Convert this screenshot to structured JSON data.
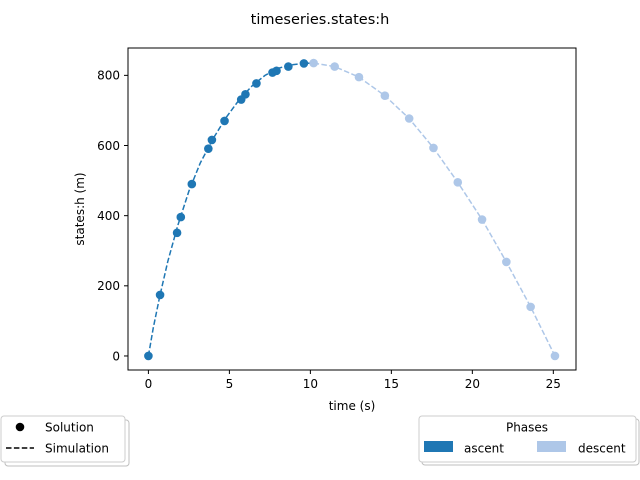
{
  "chart_data": {
    "type": "line",
    "title": "timeseries.states:h",
    "xlabel": "time (s)",
    "ylabel": "states:h (m)",
    "xlim": [
      -1.26,
      26.4
    ],
    "ylim": [
      -40,
      878
    ],
    "xticks": [
      0,
      5,
      10,
      15,
      20,
      25
    ],
    "yticks": [
      0,
      200,
      400,
      600,
      800
    ],
    "grid": false,
    "series": [
      {
        "name": "ascent",
        "color": "#1f77b4",
        "solution": {
          "x": [
            0.0,
            0.72,
            1.77,
            2.0,
            2.68,
            3.7,
            3.92,
            4.7,
            5.73,
            5.99,
            6.67,
            7.66,
            7.91,
            8.64,
            9.6
          ],
          "y": [
            0,
            174,
            351,
            396,
            490,
            591,
            616,
            670,
            731,
            746,
            777,
            808,
            813,
            825,
            834
          ]
        },
        "simulation": {
          "x": [
            0.0,
            0.3,
            0.7,
            1.2,
            1.8,
            2.5,
            3.2,
            4.0,
            4.8,
            5.6,
            6.4,
            7.2,
            8.0,
            8.8,
            9.6,
            10.2
          ],
          "y": [
            0,
            80,
            170,
            270,
            370,
            470,
            550,
            620,
            680,
            730,
            770,
            800,
            820,
            830,
            834,
            835
          ]
        }
      },
      {
        "name": "descent",
        "color": "#aec7e8",
        "solution": {
          "x": [
            10.2,
            11.5,
            13.0,
            14.6,
            16.1,
            17.6,
            19.1,
            20.6,
            22.1,
            23.6,
            25.1
          ],
          "y": [
            835,
            825,
            795,
            742,
            677,
            593,
            495,
            389,
            268,
            140,
            0
          ]
        },
        "simulation": {
          "x": [
            10.2,
            11.5,
            13.0,
            14.6,
            16.1,
            17.6,
            19.1,
            20.6,
            22.1,
            23.6,
            25.1
          ],
          "y": [
            835,
            825,
            795,
            742,
            677,
            593,
            495,
            389,
            268,
            140,
            0
          ]
        }
      }
    ],
    "legend_markers": {
      "placement": "bottom-left",
      "entries": [
        {
          "label": "Solution",
          "style": "marker"
        },
        {
          "label": "Simulation",
          "style": "dashed"
        }
      ]
    },
    "legend_phases": {
      "placement": "bottom-right",
      "title": "Phases",
      "entries": [
        {
          "label": "ascent",
          "color": "#1f77b4"
        },
        {
          "label": "descent",
          "color": "#aec7e8"
        }
      ]
    }
  }
}
